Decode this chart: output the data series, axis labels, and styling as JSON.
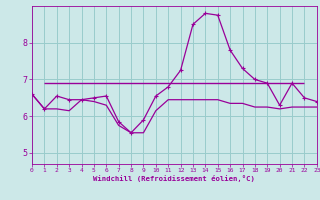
{
  "xlabel": "Windchill (Refroidissement éolien,°C)",
  "bg_color": "#cce8e8",
  "line_color": "#990099",
  "grid_color": "#99cccc",
  "x_ticks": [
    0,
    1,
    2,
    3,
    4,
    5,
    6,
    7,
    8,
    9,
    10,
    11,
    12,
    13,
    14,
    15,
    16,
    17,
    18,
    19,
    20,
    21,
    22,
    23
  ],
  "y_ticks": [
    5,
    6,
    7,
    8
  ],
  "ylim": [
    4.7,
    9.0
  ],
  "xlim": [
    0,
    23
  ],
  "series1_y": [
    6.6,
    6.2,
    6.2,
    6.15,
    6.45,
    6.4,
    6.3,
    5.75,
    5.55,
    5.55,
    6.15,
    6.45,
    6.45,
    6.45,
    6.45,
    6.45,
    6.35,
    6.35,
    6.25,
    6.25,
    6.2,
    6.25,
    6.25,
    6.25
  ],
  "series2_y": [
    6.6,
    6.2,
    6.55,
    6.45,
    6.45,
    6.5,
    6.55,
    5.85,
    5.55,
    5.9,
    6.55,
    6.8,
    7.25,
    8.5,
    8.8,
    8.75,
    7.8,
    7.3,
    7.0,
    6.9,
    6.3,
    6.9,
    6.5,
    6.4
  ],
  "hline_y": 6.9,
  "hline_xmin": 1,
  "hline_xmax": 22
}
